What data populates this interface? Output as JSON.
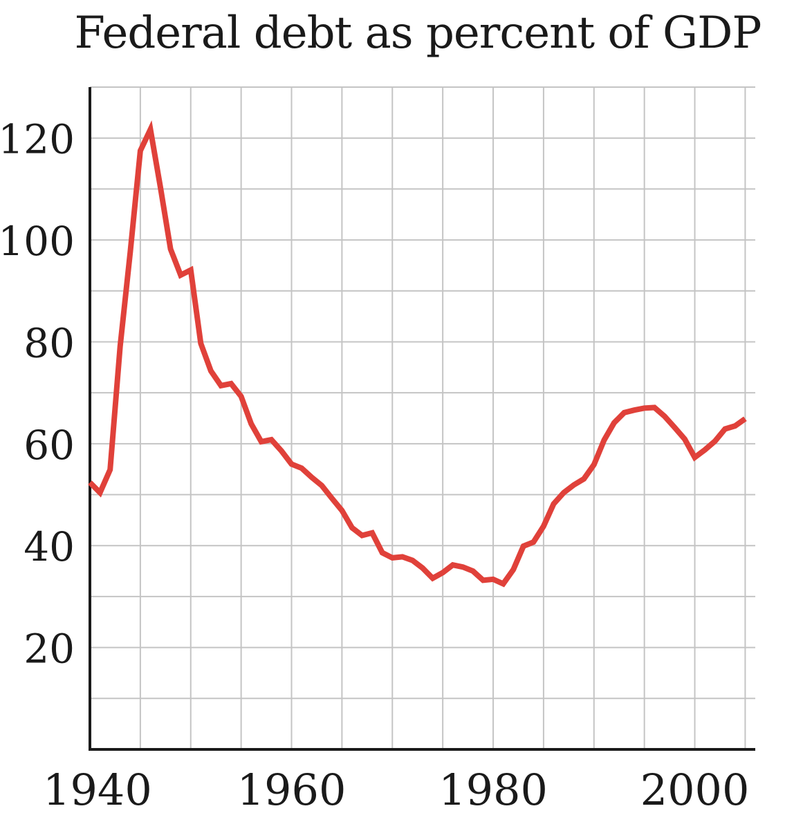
{
  "chart_data": {
    "type": "line",
    "title": "Federal debt as percent of GDP",
    "xlabel": "",
    "ylabel": "",
    "xlim": [
      1940,
      2006
    ],
    "ylim": [
      0,
      130
    ],
    "x_ticks": [
      1940,
      1960,
      1980,
      2000
    ],
    "y_ticks": [
      20,
      40,
      60,
      80,
      100,
      120
    ],
    "grid": true,
    "series": [
      {
        "color": "#e0413a",
        "x": [
          1940,
          1941,
          1942,
          1943,
          1944,
          1945,
          1946,
          1947,
          1948,
          1949,
          1950,
          1951,
          1952,
          1953,
          1954,
          1955,
          1956,
          1957,
          1958,
          1959,
          1960,
          1961,
          1962,
          1963,
          1964,
          1965,
          1966,
          1967,
          1968,
          1969,
          1970,
          1971,
          1972,
          1973,
          1974,
          1975,
          1976,
          1977,
          1978,
          1979,
          1980,
          1981,
          1982,
          1983,
          1984,
          1985,
          1986,
          1987,
          1988,
          1989,
          1990,
          1991,
          1992,
          1993,
          1994,
          1995,
          1996,
          1997,
          1998,
          1999,
          2000,
          2001,
          2002,
          2003,
          2004,
          2005
        ],
        "values": [
          52.4,
          50.4,
          54.9,
          79.1,
          97.6,
          117.5,
          121.7,
          110.3,
          98.2,
          93.1,
          94.1,
          79.7,
          74.3,
          71.4,
          71.8,
          69.3,
          63.9,
          60.4,
          60.8,
          58.6,
          56.0,
          55.2,
          53.4,
          51.8,
          49.3,
          46.9,
          43.5,
          42.0,
          42.5,
          38.6,
          37.6,
          37.8,
          37.1,
          35.6,
          33.6,
          34.7,
          36.2,
          35.8,
          35.0,
          33.2,
          33.4,
          32.5,
          35.3,
          39.9,
          40.7,
          43.8,
          48.2,
          50.4,
          51.9,
          53.1,
          55.9,
          60.7,
          64.1,
          66.1,
          66.6,
          67.0,
          67.1,
          65.4,
          63.2,
          60.9,
          57.3,
          58.8,
          60.5,
          62.9,
          63.5,
          64.9
        ]
      }
    ]
  }
}
